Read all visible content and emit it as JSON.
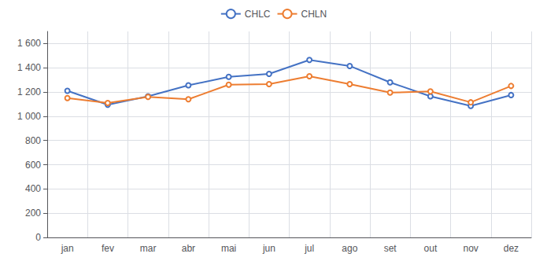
{
  "chart_data": {
    "type": "line",
    "categories": [
      "jan",
      "fev",
      "mar",
      "abr",
      "mai",
      "jun",
      "jul",
      "ago",
      "set",
      "out",
      "nov",
      "dez"
    ],
    "series": [
      {
        "name": "CHLC",
        "color": "#4472C4",
        "values": [
          1210,
          1095,
          1165,
          1255,
          1325,
          1350,
          1465,
          1415,
          1280,
          1165,
          1085,
          1175
        ]
      },
      {
        "name": "CHLN",
        "color": "#ED7D31",
        "values": [
          1150,
          1110,
          1160,
          1140,
          1260,
          1265,
          1330,
          1265,
          1195,
          1205,
          1115,
          1250
        ]
      }
    ],
    "ylim": [
      0,
      1700
    ],
    "yticks": [
      0,
      200,
      400,
      600,
      800,
      {
        "value": 1000,
        "label": "1 000"
      },
      {
        "value": 1200,
        "label": "1 200"
      },
      {
        "value": 1400,
        "label": "1 400"
      },
      {
        "value": 1600,
        "label": "1 600"
      }
    ],
    "grid": true,
    "legend": "top",
    "marker": "circle"
  }
}
